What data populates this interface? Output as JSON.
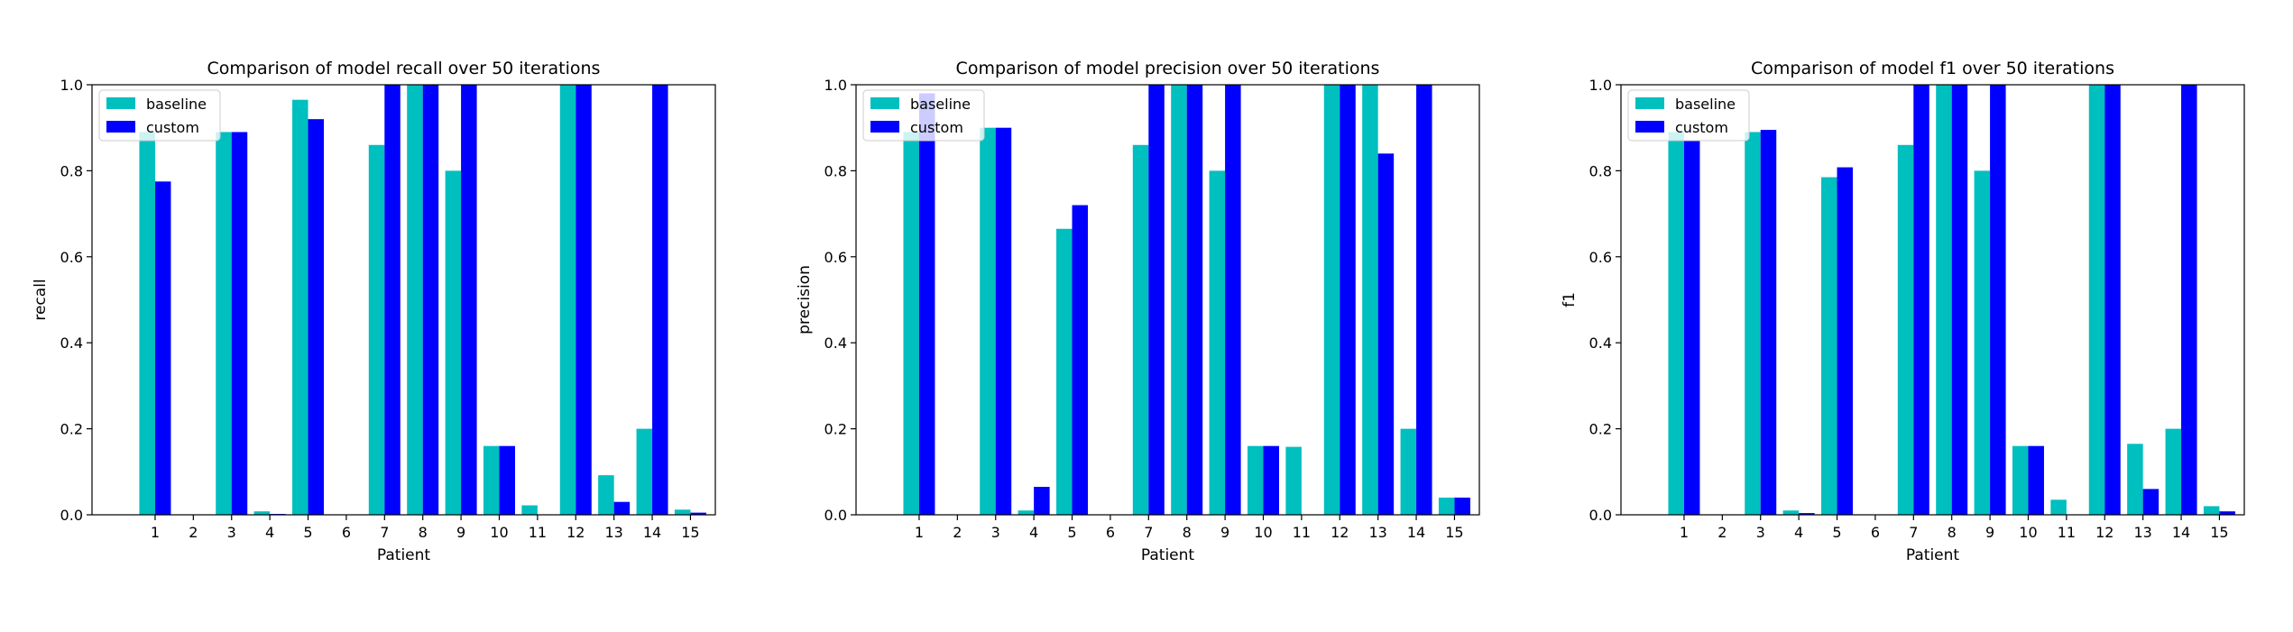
{
  "colors": {
    "baseline": "#00BFBF",
    "custom": "#0000FF"
  },
  "chart_data": [
    {
      "type": "bar",
      "title": "Comparison of model recall over 50 iterations",
      "xlabel": "Patient",
      "ylabel": "recall",
      "ylim": [
        0,
        1.0
      ],
      "yticks": [
        "0.0",
        "0.2",
        "0.4",
        "0.6",
        "0.8",
        "1.0"
      ],
      "legend_position": "top-left",
      "categories": [
        "1",
        "2",
        "3",
        "4",
        "5",
        "6",
        "7",
        "8",
        "9",
        "10",
        "11",
        "12",
        "13",
        "14",
        "15"
      ],
      "series": [
        {
          "name": "baseline",
          "values": [
            0.89,
            0,
            0.89,
            0.008,
            0.965,
            0,
            0.86,
            1.0,
            0.8,
            0.16,
            0.022,
            1.0,
            0.092,
            0.2,
            0.012
          ]
        },
        {
          "name": "custom",
          "values": [
            0.775,
            0,
            0.89,
            0.002,
            0.92,
            0,
            1.0,
            1.0,
            1.0,
            0.16,
            0,
            1.0,
            0.03,
            1.0,
            0.005
          ]
        }
      ]
    },
    {
      "type": "bar",
      "title": "Comparison of model precision over 50 iterations",
      "xlabel": "Patient",
      "ylabel": "precision",
      "ylim": [
        0,
        1.0
      ],
      "yticks": [
        "0.0",
        "0.2",
        "0.4",
        "0.6",
        "0.8",
        "1.0"
      ],
      "legend_position": "top-left",
      "categories": [
        "1",
        "2",
        "3",
        "4",
        "5",
        "6",
        "7",
        "8",
        "9",
        "10",
        "11",
        "12",
        "13",
        "14",
        "15"
      ],
      "series": [
        {
          "name": "baseline",
          "values": [
            0.89,
            0,
            0.9,
            0.01,
            0.665,
            0,
            0.86,
            1.0,
            0.8,
            0.16,
            0.158,
            1.0,
            1.0,
            0.2,
            0.04
          ]
        },
        {
          "name": "custom",
          "values": [
            0.98,
            0,
            0.9,
            0.065,
            0.72,
            0,
            1.0,
            1.0,
            1.0,
            0.16,
            0,
            1.0,
            0.84,
            1.0,
            0.04
          ]
        }
      ]
    },
    {
      "type": "bar",
      "title": "Comparison of model f1 over 50 iterations",
      "xlabel": "Patient",
      "ylabel": "f1",
      "ylim": [
        0,
        1.0
      ],
      "yticks": [
        "0.0",
        "0.2",
        "0.4",
        "0.6",
        "0.8",
        "1.0"
      ],
      "legend_position": "top-left",
      "categories": [
        "1",
        "2",
        "3",
        "4",
        "5",
        "6",
        "7",
        "8",
        "9",
        "10",
        "11",
        "12",
        "13",
        "14",
        "15"
      ],
      "series": [
        {
          "name": "baseline",
          "values": [
            0.89,
            0,
            0.89,
            0.01,
            0.785,
            0,
            0.86,
            1.0,
            0.8,
            0.16,
            0.035,
            1.0,
            0.165,
            0.2,
            0.02
          ]
        },
        {
          "name": "custom",
          "values": [
            0.87,
            0,
            0.895,
            0.004,
            0.808,
            0,
            1.0,
            1.0,
            1.0,
            0.16,
            0,
            1.0,
            0.06,
            1.0,
            0.008
          ]
        }
      ]
    }
  ]
}
